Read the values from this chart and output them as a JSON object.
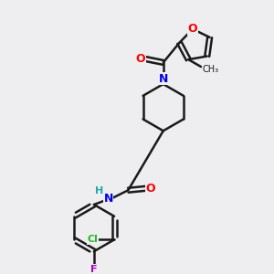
{
  "bg_color": "#eeeef0",
  "bond_color": "#1a1a1a",
  "line_width": 1.8,
  "atom_colors": {
    "O": "#ff0000",
    "N": "#0000ee",
    "Cl": "#22bb22",
    "F": "#aa00cc",
    "C": "#1a1a1a",
    "H": "#22aaaa"
  },
  "figsize": [
    3.0,
    3.0
  ],
  "dpi": 100
}
